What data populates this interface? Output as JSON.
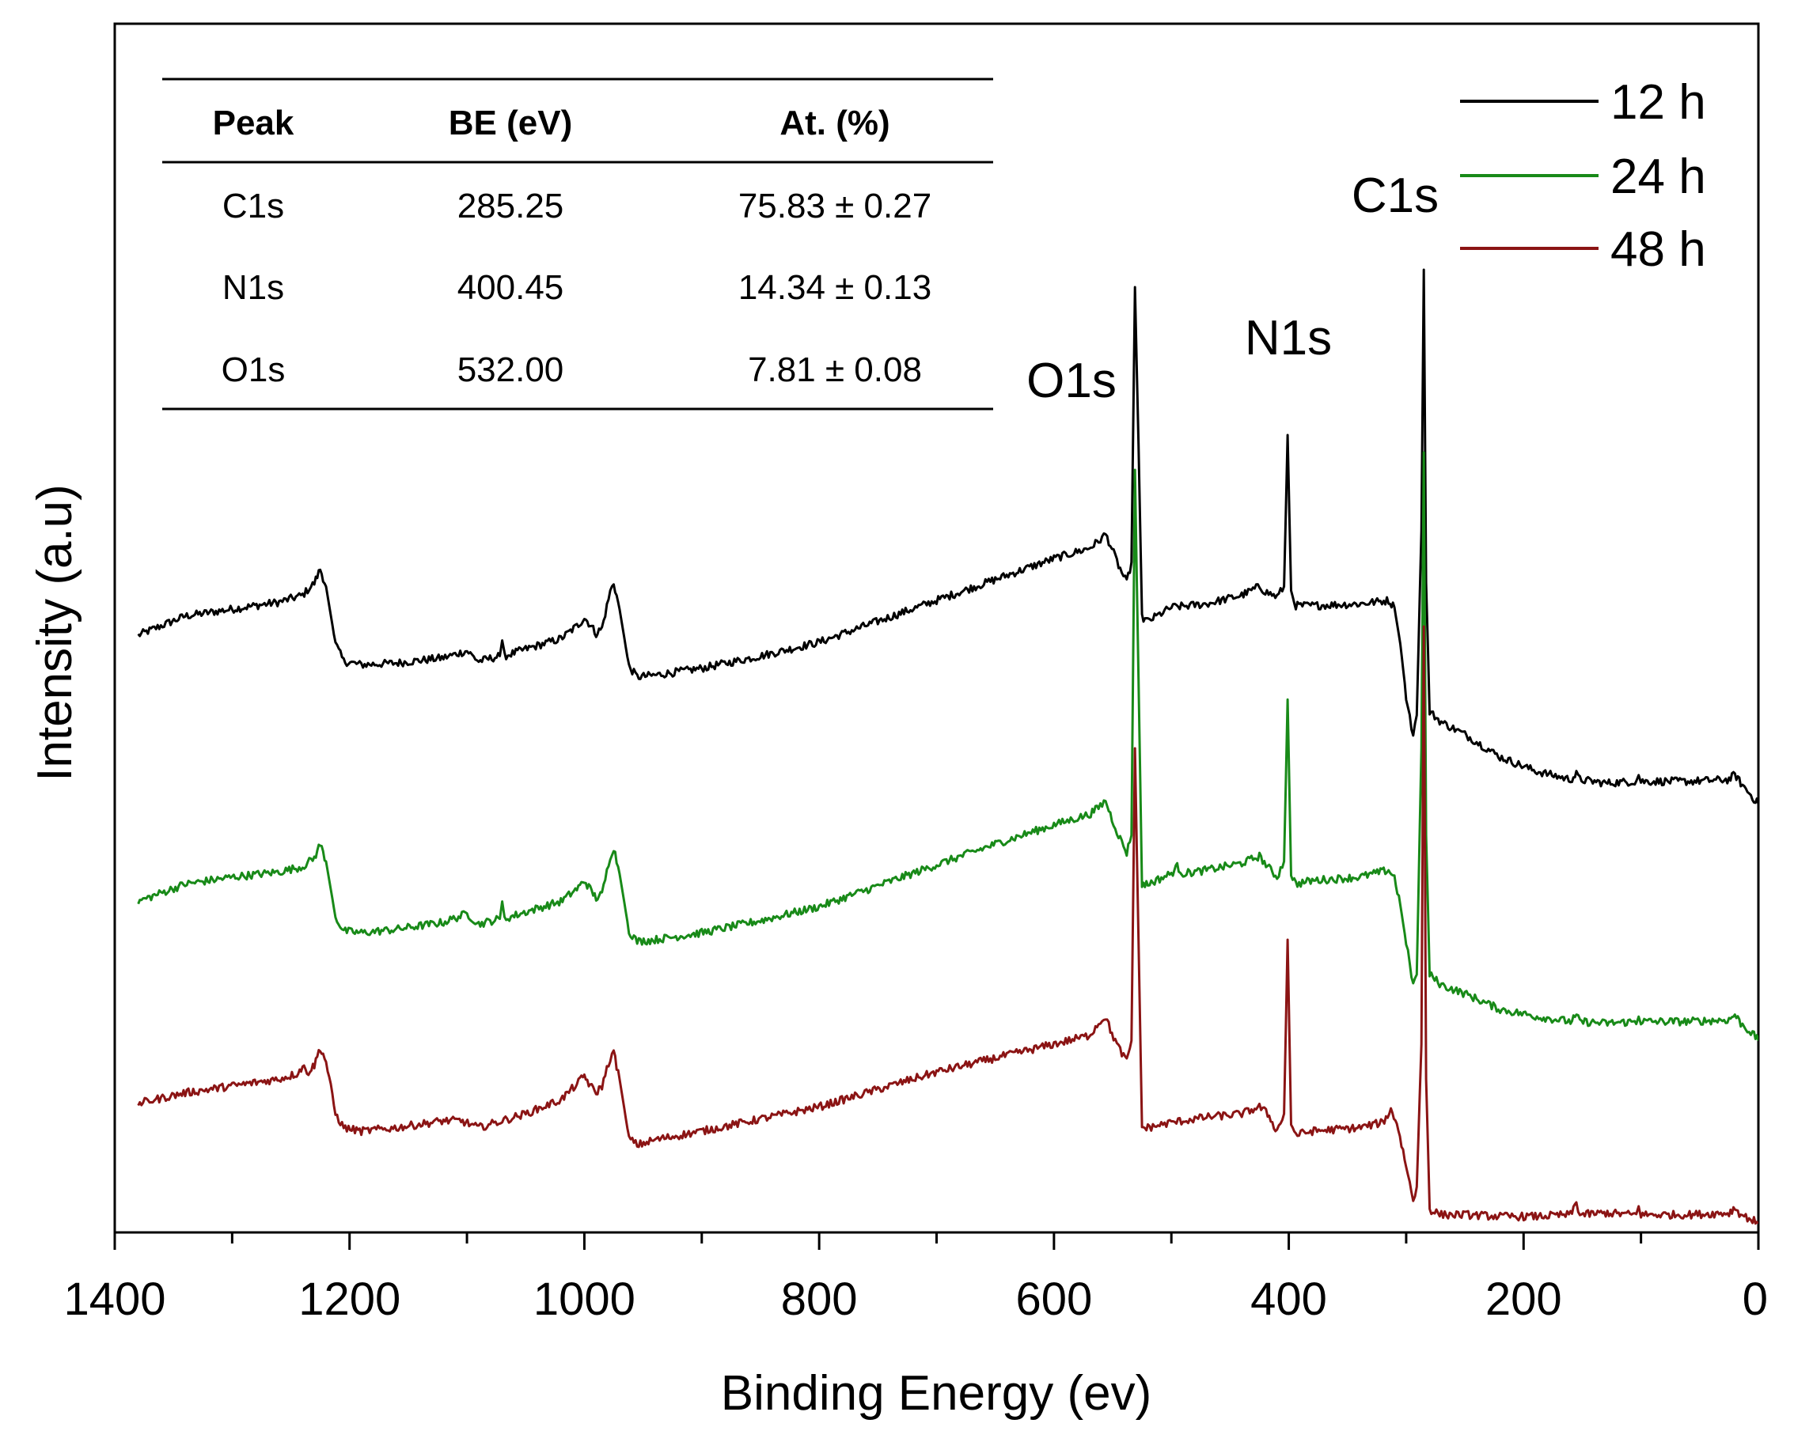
{
  "chart_data": {
    "type": "line",
    "title": "",
    "xlabel": "Binding Energy (ev)",
    "ylabel": "Intensity (a.u)",
    "xlim": [
      1400,
      0
    ],
    "x_reversed": true,
    "x_ticks": [
      1400,
      1200,
      1000,
      800,
      600,
      400,
      200,
      0
    ],
    "y_ticks_shown": false,
    "legend_position": "top-right",
    "series": [
      {
        "name": "12 h",
        "color": "#000000",
        "offset": 2.05,
        "peaks_clipped": [
          "O1s",
          "C1s"
        ],
        "points": [
          [
            1380,
            1.3
          ],
          [
            1340,
            1.41
          ],
          [
            1300,
            1.45
          ],
          [
            1260,
            1.49
          ],
          [
            1240,
            1.53
          ],
          [
            1230,
            1.6
          ],
          [
            1225,
            1.68
          ],
          [
            1220,
            1.58
          ],
          [
            1212,
            1.25
          ],
          [
            1205,
            1.15
          ],
          [
            1190,
            1.13
          ],
          [
            1160,
            1.14
          ],
          [
            1120,
            1.17
          ],
          [
            1100,
            1.21
          ],
          [
            1090,
            1.15
          ],
          [
            1072,
            1.18
          ],
          [
            1070,
            1.27
          ],
          [
            1068,
            1.18
          ],
          [
            1050,
            1.22
          ],
          [
            1020,
            1.28
          ],
          [
            1005,
            1.36
          ],
          [
            1000,
            1.4
          ],
          [
            995,
            1.36
          ],
          [
            990,
            1.31
          ],
          [
            985,
            1.34
          ],
          [
            978,
            1.55
          ],
          [
            975,
            1.6
          ],
          [
            970,
            1.45
          ],
          [
            962,
            1.12
          ],
          [
            955,
            1.06
          ],
          [
            940,
            1.07
          ],
          [
            900,
            1.11
          ],
          [
            850,
            1.18
          ],
          [
            800,
            1.26
          ],
          [
            750,
            1.38
          ],
          [
            700,
            1.5
          ],
          [
            650,
            1.62
          ],
          [
            600,
            1.74
          ],
          [
            570,
            1.8
          ],
          [
            562,
            1.84
          ],
          [
            556,
            1.88
          ],
          [
            552,
            1.82
          ],
          [
            545,
            1.7
          ],
          [
            538,
            1.6
          ],
          [
            534,
            1.72
          ],
          [
            531,
            3.3
          ],
          [
            528,
            2.4
          ],
          [
            525,
            1.4
          ],
          [
            520,
            1.38
          ],
          [
            500,
            1.46
          ],
          [
            470,
            1.48
          ],
          [
            440,
            1.53
          ],
          [
            425,
            1.58
          ],
          [
            420,
            1.55
          ],
          [
            410,
            1.52
          ],
          [
            404,
            1.58
          ],
          [
            401,
            2.45
          ],
          [
            398,
            1.55
          ],
          [
            394,
            1.47
          ],
          [
            380,
            1.47
          ],
          [
            340,
            1.48
          ],
          [
            315,
            1.5
          ],
          [
            310,
            1.46
          ],
          [
            305,
            1.25
          ],
          [
            300,
            0.95
          ],
          [
            294,
            0.72
          ],
          [
            291,
            0.84
          ],
          [
            287,
            1.9
          ],
          [
            285,
            3.4
          ],
          [
            283,
            1.6
          ],
          [
            280,
            0.86
          ],
          [
            270,
            0.8
          ],
          [
            250,
            0.73
          ],
          [
            220,
            0.6
          ],
          [
            190,
            0.52
          ],
          [
            160,
            0.47
          ],
          [
            155,
            0.5
          ],
          [
            152,
            0.47
          ],
          [
            130,
            0.45
          ],
          [
            104,
            0.46
          ],
          [
            102,
            0.5
          ],
          [
            100,
            0.46
          ],
          [
            60,
            0.46
          ],
          [
            25,
            0.47
          ],
          [
            20,
            0.5
          ],
          [
            15,
            0.45
          ],
          [
            5,
            0.37
          ],
          [
            0,
            0.33
          ]
        ]
      },
      {
        "name": "24 h",
        "color": "#188a18",
        "offset": 1.0,
        "peaks_clipped": [
          "O1s",
          "C1s"
        ],
        "points": [
          [
            1380,
            0.82
          ],
          [
            1340,
            0.92
          ],
          [
            1300,
            0.96
          ],
          [
            1260,
            0.99
          ],
          [
            1240,
            1.02
          ],
          [
            1230,
            1.07
          ],
          [
            1225,
            1.15
          ],
          [
            1220,
            1.05
          ],
          [
            1212,
            0.73
          ],
          [
            1205,
            0.65
          ],
          [
            1190,
            0.64
          ],
          [
            1160,
            0.66
          ],
          [
            1120,
            0.7
          ],
          [
            1100,
            0.75
          ],
          [
            1090,
            0.69
          ],
          [
            1072,
            0.72
          ],
          [
            1070,
            0.82
          ],
          [
            1068,
            0.72
          ],
          [
            1050,
            0.76
          ],
          [
            1020,
            0.82
          ],
          [
            1005,
            0.9
          ],
          [
            1000,
            0.94
          ],
          [
            995,
            0.89
          ],
          [
            990,
            0.84
          ],
          [
            985,
            0.86
          ],
          [
            978,
            1.08
          ],
          [
            975,
            1.13
          ],
          [
            970,
            0.98
          ],
          [
            962,
            0.65
          ],
          [
            955,
            0.59
          ],
          [
            940,
            0.6
          ],
          [
            900,
            0.64
          ],
          [
            850,
            0.71
          ],
          [
            800,
            0.79
          ],
          [
            750,
            0.91
          ],
          [
            700,
            1.03
          ],
          [
            650,
            1.15
          ],
          [
            600,
            1.26
          ],
          [
            570,
            1.32
          ],
          [
            562,
            1.36
          ],
          [
            556,
            1.4
          ],
          [
            552,
            1.32
          ],
          [
            545,
            1.2
          ],
          [
            538,
            1.1
          ],
          [
            534,
            1.2
          ],
          [
            531,
            3.3
          ],
          [
            528,
            2.1
          ],
          [
            525,
            0.92
          ],
          [
            520,
            0.92
          ],
          [
            500,
            0.98
          ],
          [
            495,
            1.02
          ],
          [
            490,
            0.98
          ],
          [
            470,
            1.0
          ],
          [
            440,
            1.04
          ],
          [
            425,
            1.08
          ],
          [
            418,
            1.02
          ],
          [
            410,
            0.96
          ],
          [
            404,
            1.05
          ],
          [
            401,
            1.98
          ],
          [
            398,
            0.98
          ],
          [
            394,
            0.92
          ],
          [
            380,
            0.94
          ],
          [
            340,
            0.96
          ],
          [
            315,
            1.0
          ],
          [
            310,
            0.96
          ],
          [
            305,
            0.8
          ],
          [
            300,
            0.58
          ],
          [
            294,
            0.34
          ],
          [
            291,
            0.4
          ],
          [
            287,
            1.7
          ],
          [
            285,
            3.4
          ],
          [
            283,
            1.2
          ],
          [
            280,
            0.4
          ],
          [
            270,
            0.34
          ],
          [
            250,
            0.29
          ],
          [
            220,
            0.2
          ],
          [
            190,
            0.16
          ],
          [
            160,
            0.13
          ],
          [
            155,
            0.16
          ],
          [
            152,
            0.13
          ],
          [
            130,
            0.12
          ],
          [
            104,
            0.13
          ],
          [
            102,
            0.17
          ],
          [
            100,
            0.13
          ],
          [
            60,
            0.13
          ],
          [
            25,
            0.14
          ],
          [
            20,
            0.17
          ],
          [
            15,
            0.12
          ],
          [
            5,
            0.06
          ],
          [
            0,
            0.02
          ]
        ]
      },
      {
        "name": "48 h",
        "color": "#8b1414",
        "offset": 0.0,
        "peaks_clipped": [
          "C1s"
        ],
        "points": [
          [
            1380,
            0.66
          ],
          [
            1340,
            0.72
          ],
          [
            1300,
            0.76
          ],
          [
            1260,
            0.8
          ],
          [
            1245,
            0.83
          ],
          [
            1240,
            0.87
          ],
          [
            1235,
            0.84
          ],
          [
            1230,
            0.88
          ],
          [
            1225,
            0.98
          ],
          [
            1220,
            0.9
          ],
          [
            1212,
            0.6
          ],
          [
            1205,
            0.52
          ],
          [
            1190,
            0.5
          ],
          [
            1160,
            0.52
          ],
          [
            1120,
            0.56
          ],
          [
            1105,
            0.56
          ],
          [
            1090,
            0.52
          ],
          [
            1070,
            0.56
          ],
          [
            1050,
            0.6
          ],
          [
            1020,
            0.68
          ],
          [
            1005,
            0.78
          ],
          [
            1000,
            0.82
          ],
          [
            995,
            0.76
          ],
          [
            990,
            0.72
          ],
          [
            985,
            0.76
          ],
          [
            978,
            0.92
          ],
          [
            975,
            0.95
          ],
          [
            970,
            0.8
          ],
          [
            962,
            0.46
          ],
          [
            955,
            0.42
          ],
          [
            940,
            0.45
          ],
          [
            900,
            0.5
          ],
          [
            850,
            0.57
          ],
          [
            800,
            0.64
          ],
          [
            750,
            0.74
          ],
          [
            700,
            0.84
          ],
          [
            650,
            0.92
          ],
          [
            600,
            1.0
          ],
          [
            570,
            1.05
          ],
          [
            562,
            1.12
          ],
          [
            556,
            1.16
          ],
          [
            552,
            1.08
          ],
          [
            545,
            0.98
          ],
          [
            538,
            0.9
          ],
          [
            534,
            1.02
          ],
          [
            531,
            2.7
          ],
          [
            528,
            1.6
          ],
          [
            525,
            0.52
          ],
          [
            520,
            0.52
          ],
          [
            500,
            0.55
          ],
          [
            470,
            0.58
          ],
          [
            440,
            0.6
          ],
          [
            425,
            0.64
          ],
          [
            418,
            0.6
          ],
          [
            410,
            0.5
          ],
          [
            404,
            0.6
          ],
          [
            401,
            1.6
          ],
          [
            398,
            0.54
          ],
          [
            394,
            0.48
          ],
          [
            380,
            0.5
          ],
          [
            340,
            0.52
          ],
          [
            320,
            0.55
          ],
          [
            313,
            0.62
          ],
          [
            308,
            0.55
          ],
          [
            300,
            0.3
          ],
          [
            294,
            0.1
          ],
          [
            291,
            0.18
          ],
          [
            287,
            1.0
          ],
          [
            285,
            3.4
          ],
          [
            283,
            0.8
          ],
          [
            280,
            0.05
          ],
          [
            270,
            0.02
          ],
          [
            250,
            0.02
          ],
          [
            220,
            0.01
          ],
          [
            190,
            0.01
          ],
          [
            160,
            0.02
          ],
          [
            155,
            0.09
          ],
          [
            152,
            0.02
          ],
          [
            130,
            0.03
          ],
          [
            104,
            0.02
          ],
          [
            102,
            0.08
          ],
          [
            100,
            0.02
          ],
          [
            60,
            0.02
          ],
          [
            25,
            0.03
          ],
          [
            20,
            0.06
          ],
          [
            15,
            0.02
          ],
          [
            5,
            -0.01
          ],
          [
            0,
            -0.03
          ]
        ]
      }
    ],
    "annotations": [
      {
        "text": "O1s",
        "x": 531
      },
      {
        "text": "N1s",
        "x": 401
      },
      {
        "text": "C1s",
        "x": 285
      }
    ],
    "inset_table": {
      "headers": [
        "Peak",
        "BE (eV)",
        "At. (%)"
      ],
      "rows": [
        [
          "C1s",
          "285.25",
          "75.83 ± 0.27"
        ],
        [
          "N1s",
          "400.45",
          "14.34 ± 0.13"
        ],
        [
          "O1s",
          "532.00",
          "7.81 ± 0.08"
        ]
      ]
    }
  }
}
